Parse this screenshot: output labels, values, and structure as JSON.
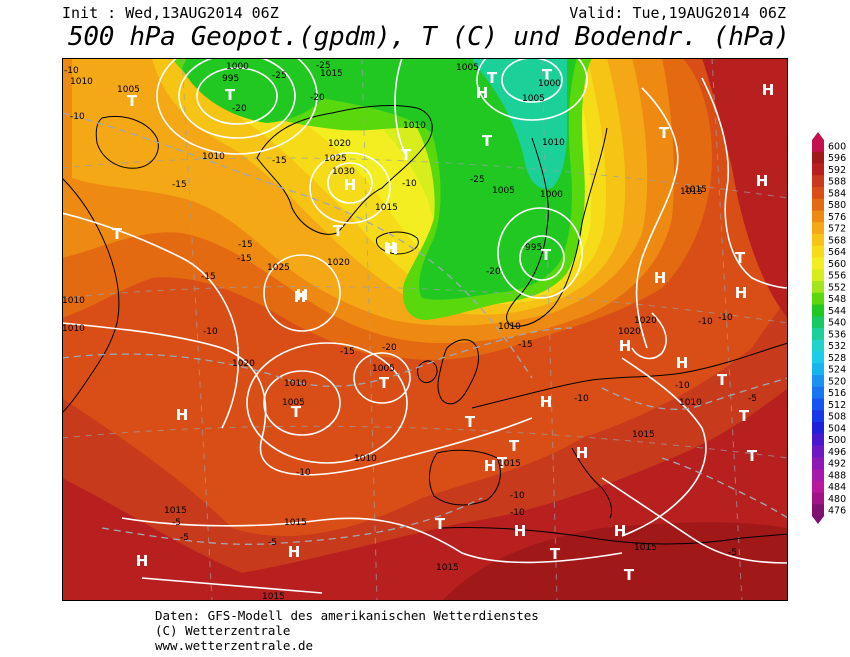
{
  "header": {
    "init_label": "Init : Wed,13AUG2014 06Z",
    "valid_label": "Valid: Tue,19AUG2014 06Z",
    "title": "500 hPa Geopot.(gpdm), T (C) und Bodendr. (hPa)"
  },
  "colorbar": {
    "levels": [
      "600",
      "596",
      "592",
      "588",
      "584",
      "580",
      "576",
      "572",
      "568",
      "564",
      "560",
      "556",
      "552",
      "548",
      "544",
      "540",
      "536",
      "532",
      "528",
      "524",
      "520",
      "516",
      "512",
      "508",
      "504",
      "500",
      "496",
      "492",
      "488",
      "484",
      "480",
      "476"
    ],
    "colors": [
      "#c4104c",
      "#a01818",
      "#b82020",
      "#c83a1c",
      "#d84e16",
      "#e46a12",
      "#ee8a12",
      "#f4a816",
      "#f6c414",
      "#f6dc18",
      "#f2ee22",
      "#d8ee1c",
      "#a4e41a",
      "#5ad80e",
      "#22c822",
      "#18c860",
      "#1cd09a",
      "#20d4cc",
      "#1ccce8",
      "#18b4ee",
      "#1894f0",
      "#1874f0",
      "#1854f0",
      "#1838e8",
      "#2020d8",
      "#4818d0",
      "#6c18c4",
      "#8c18b8",
      "#a418ac",
      "#b8189c",
      "#a01488",
      "#801070"
    ]
  },
  "map": {
    "highs": [
      "H",
      "H",
      "H",
      "H",
      "H",
      "H",
      "H",
      "H",
      "H",
      "H",
      "H",
      "H",
      "H",
      "H",
      "H",
      "H",
      "H",
      "H",
      "H",
      "H"
    ],
    "lows": [
      "T",
      "T",
      "T",
      "T",
      "T",
      "T",
      "T",
      "T",
      "T",
      "T",
      "T",
      "T",
      "T",
      "T",
      "T",
      "T",
      "T",
      "T",
      "T",
      "T",
      "T",
      "T"
    ],
    "pressure_labels": [
      "1010",
      "1005",
      "1010",
      "1000",
      "995",
      "1015",
      "1005",
      "1005",
      "1000",
      "1010",
      "1020",
      "1025",
      "1030",
      "1015",
      "1010",
      "1005",
      "1000",
      "995",
      "1015",
      "1020",
      "1025",
      "1010",
      "1010",
      "1020",
      "1005",
      "1005",
      "1010",
      "1015",
      "1010",
      "1015",
      "1015",
      "1015",
      "1015",
      "1015",
      "1010",
      "1020",
      "1020",
      "1010",
      "1015",
      "1015"
    ],
    "temp_labels": [
      "-10",
      "-10",
      "-25",
      "-15",
      "-15",
      "-15",
      "-15",
      "-10",
      "-15",
      "-20",
      "-25",
      "-20",
      "-20",
      "-20",
      "-15",
      "-10",
      "-10",
      "-10",
      "-10",
      "-10",
      "-5",
      "-5",
      "-5",
      "-5",
      "-5",
      "-10",
      "-15",
      "-10",
      "-10",
      "-25"
    ]
  },
  "footer": {
    "line1": "Daten: GFS-Modell des amerikanischen Wetterdienstes",
    "line2": "(C) Wetterzentrale",
    "line3": "www.wetterzentrale.de"
  }
}
